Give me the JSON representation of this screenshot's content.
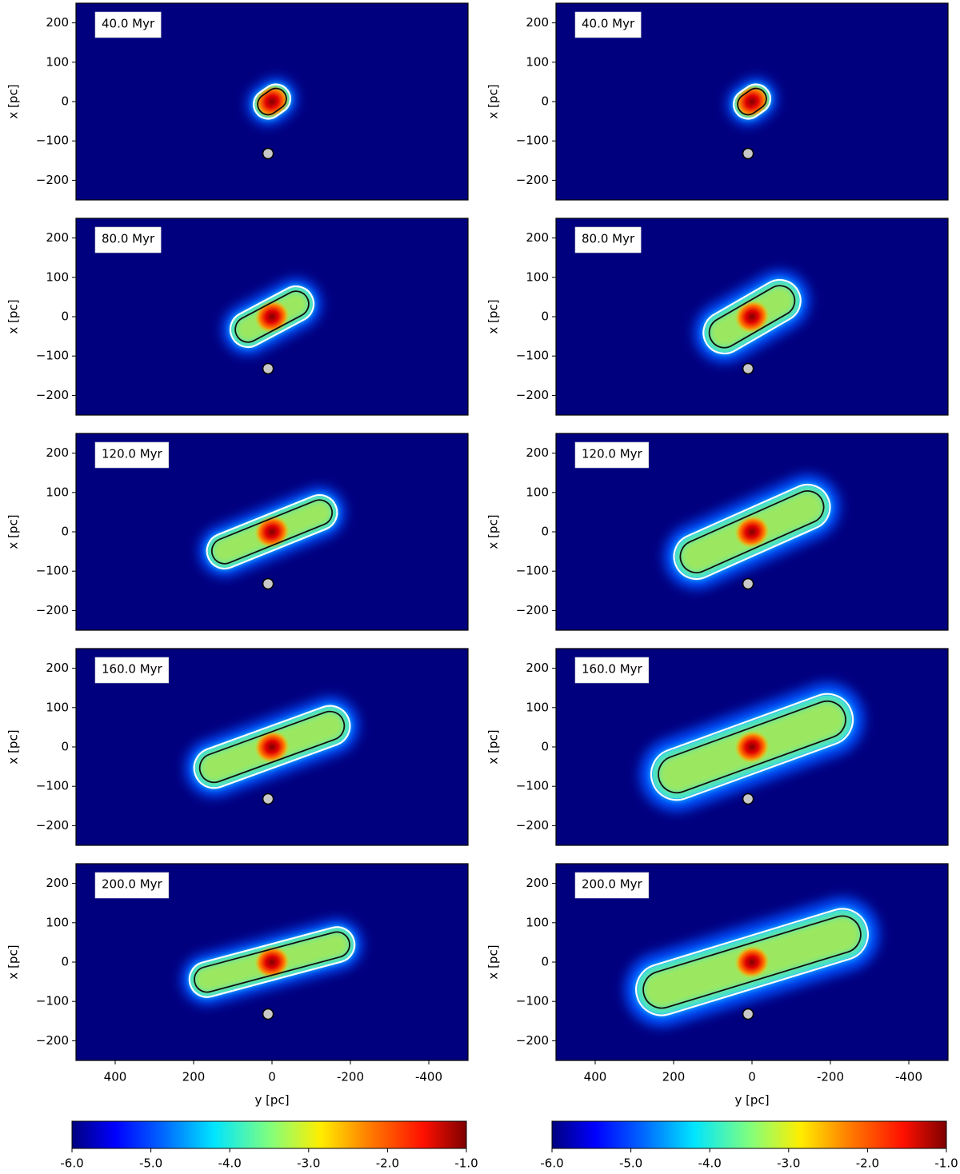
{
  "chart_data": [
    {
      "type": "image",
      "title": "40.0 Myr",
      "xlim": [
        500,
        -500
      ],
      "ylim": [
        -250,
        250
      ],
      "ylabel": "x [pc]",
      "yticks": [
        {
          "value": -200,
          "label": "−200"
        },
        {
          "value": -100,
          "label": "−100"
        },
        0,
        100,
        200
      ],
      "points": {
        "x": [
          10
        ],
        "y": [
          -132
        ]
      }
    },
    {
      "type": "image",
      "title": "40.0 Myr",
      "xlim": [
        500,
        -500
      ],
      "ylim": [
        -250,
        250
      ],
      "ylabel": "x [pc]",
      "yticks": [
        {
          "value": -200,
          "label": "−200"
        },
        {
          "value": -100,
          "label": "−100"
        },
        0,
        100,
        200
      ],
      "points": {
        "x": [
          10
        ],
        "y": [
          -132
        ]
      }
    },
    {
      "type": "image",
      "title": "80.0 Myr",
      "xlim": [
        500,
        -500
      ],
      "ylim": [
        -250,
        250
      ],
      "ylabel": "x [pc]",
      "yticks": [
        {
          "value": -200,
          "label": "−200"
        },
        {
          "value": -100,
          "label": "−100"
        },
        0,
        100,
        200
      ],
      "points": {
        "x": [
          10
        ],
        "y": [
          -132
        ]
      }
    },
    {
      "type": "image",
      "title": "80.0 Myr",
      "xlim": [
        500,
        -500
      ],
      "ylim": [
        -250,
        250
      ],
      "ylabel": "x [pc]",
      "yticks": [
        {
          "value": -200,
          "label": "−200"
        },
        {
          "value": -100,
          "label": "−100"
        },
        0,
        100,
        200
      ],
      "points": {
        "x": [
          10
        ],
        "y": [
          -132
        ]
      }
    },
    {
      "type": "image",
      "title": "120.0 Myr",
      "xlim": [
        500,
        -500
      ],
      "ylim": [
        -250,
        250
      ],
      "ylabel": "x [pc]",
      "yticks": [
        {
          "value": -200,
          "label": "−200"
        },
        {
          "value": -100,
          "label": "−100"
        },
        0,
        100,
        200
      ],
      "points": {
        "x": [
          10
        ],
        "y": [
          -132
        ]
      }
    },
    {
      "type": "image",
      "title": "120.0 Myr",
      "xlim": [
        500,
        -500
      ],
      "ylim": [
        -250,
        250
      ],
      "ylabel": "x [pc]",
      "yticks": [
        {
          "value": -200,
          "label": "−200"
        },
        {
          "value": -100,
          "label": "−100"
        },
        0,
        100,
        200
      ],
      "points": {
        "x": [
          10
        ],
        "y": [
          -132
        ]
      }
    },
    {
      "type": "image",
      "title": "160.0 Myr",
      "xlim": [
        500,
        -500
      ],
      "ylim": [
        -250,
        250
      ],
      "ylabel": "x [pc]",
      "yticks": [
        {
          "value": -200,
          "label": "−200"
        },
        {
          "value": -100,
          "label": "−100"
        },
        0,
        100,
        200
      ],
      "points": {
        "x": [
          10
        ],
        "y": [
          -132
        ]
      }
    },
    {
      "type": "image",
      "title": "160.0 Myr",
      "xlim": [
        500,
        -500
      ],
      "ylim": [
        -250,
        250
      ],
      "ylabel": "x [pc]",
      "yticks": [
        {
          "value": -200,
          "label": "−200"
        },
        {
          "value": -100,
          "label": "−100"
        },
        0,
        100,
        200
      ],
      "points": {
        "x": [
          10
        ],
        "y": [
          -132
        ]
      }
    },
    {
      "type": "image",
      "title": "200.0 Myr",
      "xlim": [
        500,
        -500
      ],
      "ylim": [
        -250,
        250
      ],
      "ylabel": "x [pc]",
      "yticks": [
        {
          "value": -200,
          "label": "−200"
        },
        {
          "value": -100,
          "label": "−100"
        },
        0,
        100,
        200
      ],
      "xlabel": "y [pc]",
      "xticks": [
        400,
        200,
        0,
        -200,
        -400
      ],
      "points": {
        "x": [
          10
        ],
        "y": [
          -132
        ]
      }
    },
    {
      "type": "image",
      "title": "200.0 Myr",
      "xlim": [
        500,
        -500
      ],
      "ylim": [
        -250,
        250
      ],
      "ylabel": "x [pc]",
      "yticks": [
        {
          "value": -200,
          "label": "−200"
        },
        {
          "value": -100,
          "label": "−100"
        },
        0,
        100,
        200
      ],
      "xlabel": "y [pc]",
      "xticks": [
        400,
        200,
        0,
        -200,
        -400
      ],
      "points": {
        "x": [
          10
        ],
        "y": [
          -132
        ]
      }
    },
    {
      "type": "colorbar",
      "clim": [
        -6,
        -1
      ],
      "ticks": [
        {
          "value": -6,
          "label": "-6.0"
        },
        {
          "value": -5,
          "label": "-5.0"
        },
        {
          "value": -4,
          "label": "-4.0"
        },
        {
          "value": -3,
          "label": "-3.0"
        },
        {
          "value": -2,
          "label": "-2.0"
        },
        {
          "value": -1,
          "label": "-1.0"
        }
      ]
    },
    {
      "type": "colorbar",
      "clim": [
        -6,
        -1
      ],
      "ticks": [
        {
          "value": -6,
          "label": "-6.0"
        },
        {
          "value": -5,
          "label": "-5.0"
        },
        {
          "value": -4,
          "label": "-4.0"
        },
        {
          "value": -3,
          "label": "-3.0"
        },
        {
          "value": -2,
          "label": "-2.0"
        },
        {
          "value": -1,
          "label": "-1.0"
        }
      ]
    }
  ]
}
